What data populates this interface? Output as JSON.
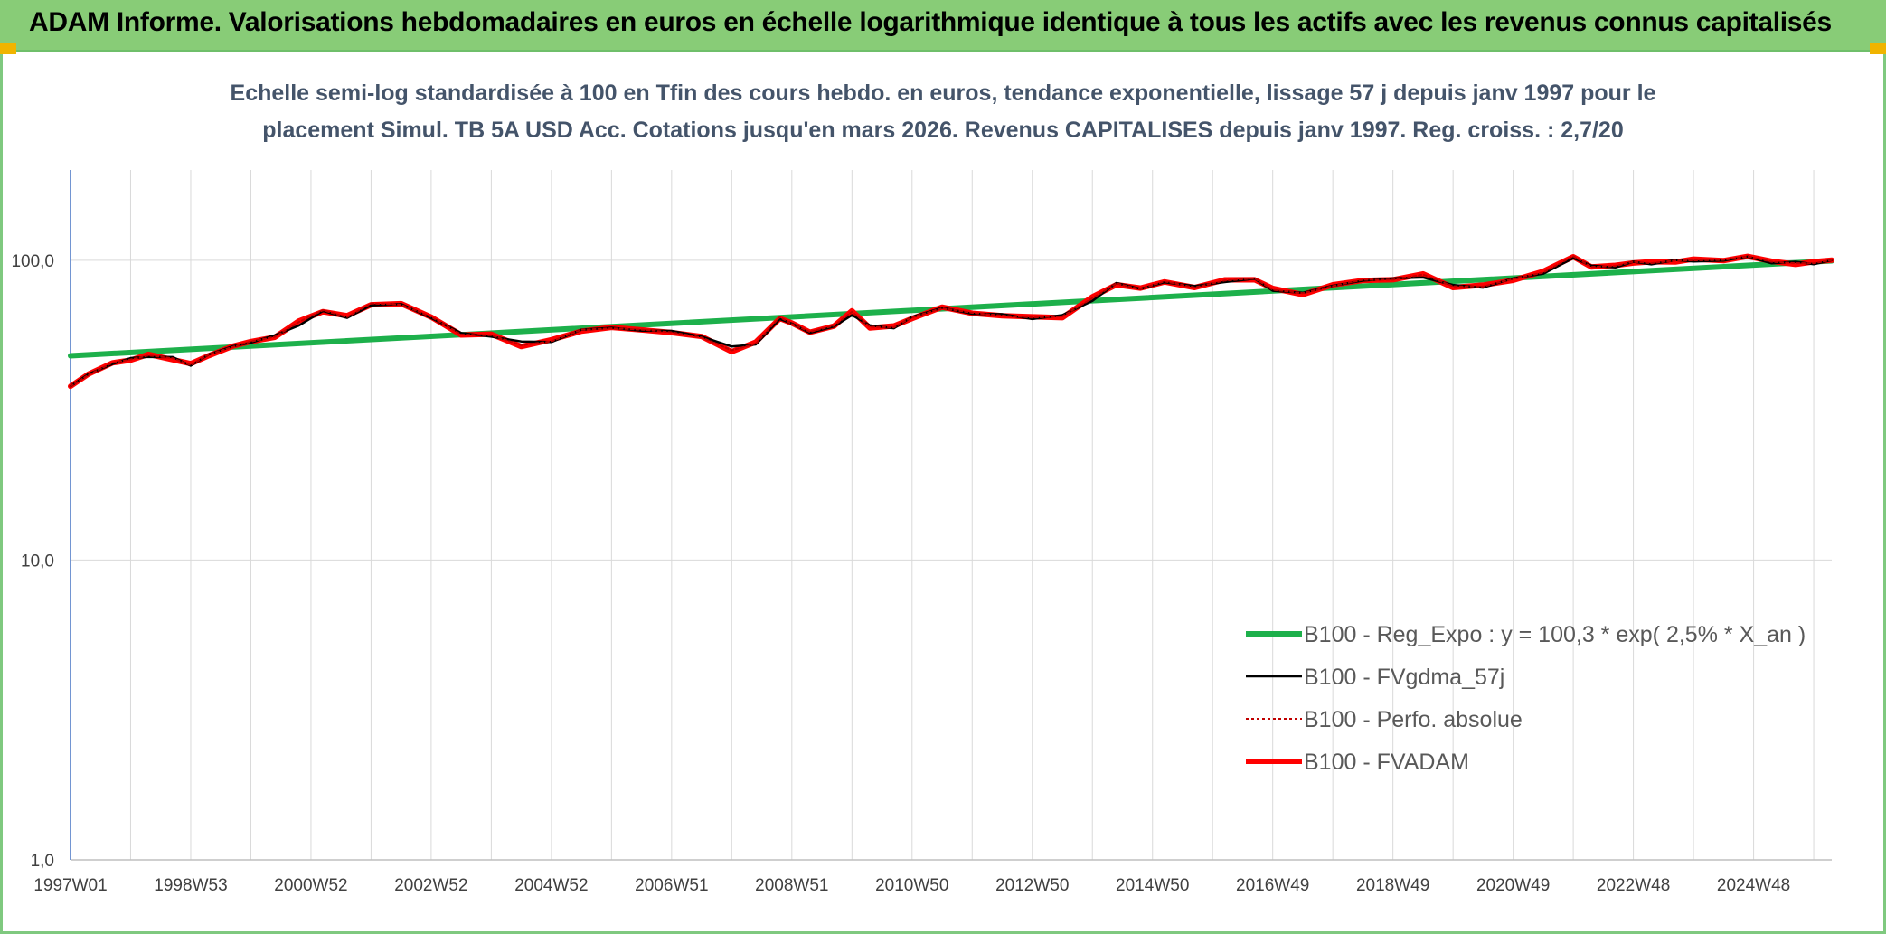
{
  "header": {
    "title": "ADAM Informe. Valorisations hebdomadaires en euros en échelle logarithmique identique à tous les actifs avec les revenus connus capitalisés"
  },
  "colors": {
    "banner": "#88cc77",
    "reg_expo": "#1db04b",
    "fvgdma": "#000000",
    "perfo": "#c00000",
    "fvadam": "#ff0000",
    "grid": "#d9d9d9"
  },
  "chart_data": {
    "type": "line",
    "title": "Echelle semi-log standardisée à 100 en Tfin des cours hebdo. en euros, tendance exponentielle, lissage 57 j depuis janv 1997 pour le",
    "subtitle": "placement Simul. TB 5A USD Acc. Cotations jusqu'en mars 2026. Revenus CAPITALISES depuis janv 1997. Reg. croiss. : 2,7/20",
    "xlabel": "",
    "ylabel": "",
    "y_scale": "log",
    "ylim": [
      1,
      200
    ],
    "xlim": [
      1997.0,
      2026.3
    ],
    "y_ticks": [
      {
        "value": 1,
        "label": "1,0"
      },
      {
        "value": 10,
        "label": "10,0"
      },
      {
        "value": 100,
        "label": "100,0"
      }
    ],
    "x_ticks": [
      {
        "value": 1997.0,
        "label": "1997W01"
      },
      {
        "value": 1999.0,
        "label": "1998W53"
      },
      {
        "value": 2001.0,
        "label": "2000W52"
      },
      {
        "value": 2003.0,
        "label": "2002W52"
      },
      {
        "value": 2005.0,
        "label": "2004W52"
      },
      {
        "value": 2007.0,
        "label": "2006W51"
      },
      {
        "value": 2009.0,
        "label": "2008W51"
      },
      {
        "value": 2011.0,
        "label": "2010W50"
      },
      {
        "value": 2013.0,
        "label": "2012W50"
      },
      {
        "value": 2015.0,
        "label": "2014W50"
      },
      {
        "value": 2017.0,
        "label": "2016W49"
      },
      {
        "value": 2019.0,
        "label": "2018W49"
      },
      {
        "value": 2021.0,
        "label": "2020W49"
      },
      {
        "value": 2023.0,
        "label": "2022W48"
      },
      {
        "value": 2025.0,
        "label": "2024W48"
      }
    ],
    "grid": "vertical-and-horizontal",
    "legend_position": "bottom-right",
    "series": [
      {
        "name": "B100 - Reg_Expo : y = 100,3 * exp( 2,5% *  X_an )",
        "color": "#1db04b",
        "style": "solid-thick",
        "x": [
          1997.0,
          2026.3
        ],
        "y": [
          48.0,
          99.5
        ]
      },
      {
        "name": "B100 - FVgdma_57j",
        "color": "#000000",
        "style": "solid-thin",
        "x": [
          1997.0,
          1997.3,
          1997.7,
          1998.0,
          1998.3,
          1998.7,
          1999.0,
          1999.3,
          1999.7,
          2000.0,
          2000.4,
          2000.8,
          2001.2,
          2001.6,
          2002.0,
          2002.5,
          2003.0,
          2003.5,
          2004.0,
          2004.5,
          2005.0,
          2005.5,
          2006.0,
          2006.5,
          2007.0,
          2007.5,
          2008.0,
          2008.4,
          2008.8,
          2009.0,
          2009.3,
          2009.7,
          2010.0,
          2010.3,
          2010.7,
          2011.0,
          2011.5,
          2012.0,
          2012.5,
          2013.0,
          2013.5,
          2014.0,
          2014.4,
          2014.8,
          2015.2,
          2015.7,
          2016.2,
          2016.7,
          2017.0,
          2017.5,
          2018.0,
          2018.5,
          2019.0,
          2019.5,
          2020.0,
          2020.5,
          2021.0,
          2021.5,
          2022.0,
          2022.3,
          2022.7,
          2023.0,
          2023.3,
          2023.7,
          2024.0,
          2024.5,
          2024.9,
          2025.3,
          2025.7,
          2026.0,
          2026.3
        ],
        "y": [
          38.0,
          42.0,
          45.0,
          47.0,
          48.0,
          47.0,
          45.0,
          48.0,
          52.0,
          53.0,
          56.0,
          61.0,
          67.0,
          65.0,
          70.0,
          72.0,
          64.0,
          57.0,
          56.0,
          53.0,
          54.0,
          58.0,
          60.0,
          58.0,
          58.0,
          56.0,
          51.0,
          53.0,
          63.0,
          62.0,
          57.0,
          60.0,
          66.0,
          60.0,
          60.0,
          64.0,
          70.0,
          66.0,
          66.0,
          64.0,
          65.0,
          74.0,
          83.0,
          81.0,
          84.0,
          82.0,
          85.0,
          86.0,
          80.0,
          77.0,
          83.0,
          85.0,
          87.0,
          88.0,
          82.0,
          82.0,
          86.0,
          91.0,
          101.0,
          96.0,
          95.0,
          98.0,
          98.0,
          99.0,
          100.0,
          99.0,
          103.0,
          98.0,
          98.0,
          98.0,
          100.0
        ]
      },
      {
        "name": "B100 - Perfo. absolue",
        "color": "#c00000",
        "style": "dotted",
        "x": [
          1997.0,
          1997.3,
          1997.7,
          1998.0,
          1998.3,
          1998.7,
          1999.0,
          1999.3,
          1999.7,
          2000.0,
          2000.4,
          2000.8,
          2001.2,
          2001.6,
          2002.0,
          2002.5,
          2003.0,
          2003.5,
          2004.0,
          2004.5,
          2005.0,
          2005.5,
          2006.0,
          2006.5,
          2007.0,
          2007.5,
          2008.0,
          2008.4,
          2008.8,
          2009.0,
          2009.3,
          2009.7,
          2010.0,
          2010.3,
          2010.7,
          2011.0,
          2011.5,
          2012.0,
          2012.5,
          2013.0,
          2013.5,
          2014.0,
          2014.4,
          2014.8,
          2015.2,
          2015.7,
          2016.2,
          2016.7,
          2017.0,
          2017.5,
          2018.0,
          2018.5,
          2019.0,
          2019.5,
          2020.0,
          2020.5,
          2021.0,
          2021.5,
          2022.0,
          2022.3,
          2022.7,
          2023.0,
          2023.3,
          2023.7,
          2024.0,
          2024.5,
          2024.9,
          2025.3,
          2025.7,
          2026.0,
          2026.3
        ],
        "y": [
          38.0,
          42.0,
          45.0,
          47.0,
          48.0,
          47.0,
          45.0,
          48.0,
          52.0,
          53.0,
          56.0,
          62.0,
          68.0,
          65.0,
          71.0,
          72.0,
          64.0,
          57.0,
          56.0,
          52.0,
          54.0,
          58.0,
          60.0,
          58.0,
          58.0,
          55.0,
          50.0,
          53.0,
          64.0,
          62.0,
          57.0,
          61.0,
          67.0,
          60.0,
          60.0,
          64.0,
          70.0,
          66.0,
          66.0,
          64.0,
          65.0,
          75.0,
          83.0,
          81.0,
          84.0,
          82.0,
          85.0,
          87.0,
          80.0,
          77.0,
          83.0,
          85.0,
          87.0,
          89.0,
          82.0,
          82.0,
          86.0,
          92.0,
          102.0,
          96.0,
          95.0,
          99.0,
          98.0,
          99.0,
          101.0,
          99.0,
          104.0,
          98.0,
          98.0,
          98.0,
          100.0
        ]
      },
      {
        "name": "B100 - FVADAM",
        "color": "#ff0000",
        "style": "solid-thick",
        "x": [
          1997.0,
          1997.3,
          1997.7,
          1998.0,
          1998.3,
          1998.7,
          1999.0,
          1999.3,
          1999.7,
          2000.0,
          2000.4,
          2000.8,
          2001.2,
          2001.6,
          2002.0,
          2002.5,
          2003.0,
          2003.5,
          2004.0,
          2004.5,
          2005.0,
          2005.5,
          2006.0,
          2006.5,
          2007.0,
          2007.5,
          2008.0,
          2008.4,
          2008.8,
          2009.0,
          2009.3,
          2009.7,
          2010.0,
          2010.3,
          2010.7,
          2011.0,
          2011.5,
          2012.0,
          2012.5,
          2013.0,
          2013.5,
          2014.0,
          2014.4,
          2014.8,
          2015.2,
          2015.7,
          2016.2,
          2016.7,
          2017.0,
          2017.5,
          2018.0,
          2018.5,
          2019.0,
          2019.5,
          2020.0,
          2020.5,
          2021.0,
          2021.5,
          2022.0,
          2022.3,
          2022.7,
          2023.0,
          2023.3,
          2023.7,
          2024.0,
          2024.5,
          2024.9,
          2025.3,
          2025.7,
          2026.0,
          2026.3
        ],
        "y": [
          38.0,
          42.0,
          45.0,
          47.0,
          48.0,
          47.0,
          45.0,
          48.0,
          52.0,
          53.0,
          56.0,
          62.0,
          68.0,
          65.0,
          71.0,
          72.0,
          64.0,
          57.0,
          56.0,
          52.0,
          54.0,
          58.0,
          60.0,
          58.0,
          58.0,
          55.0,
          50.0,
          53.0,
          64.0,
          62.0,
          57.0,
          61.0,
          67.0,
          60.0,
          60.0,
          64.0,
          70.0,
          66.0,
          66.0,
          64.0,
          65.0,
          75.0,
          83.0,
          81.0,
          84.0,
          82.0,
          85.0,
          87.0,
          80.0,
          77.0,
          83.0,
          85.0,
          87.0,
          89.0,
          82.0,
          82.0,
          86.0,
          92.0,
          102.0,
          96.0,
          95.0,
          99.0,
          98.0,
          99.0,
          101.0,
          99.0,
          104.0,
          98.0,
          98.0,
          98.0,
          100.0
        ]
      }
    ]
  }
}
